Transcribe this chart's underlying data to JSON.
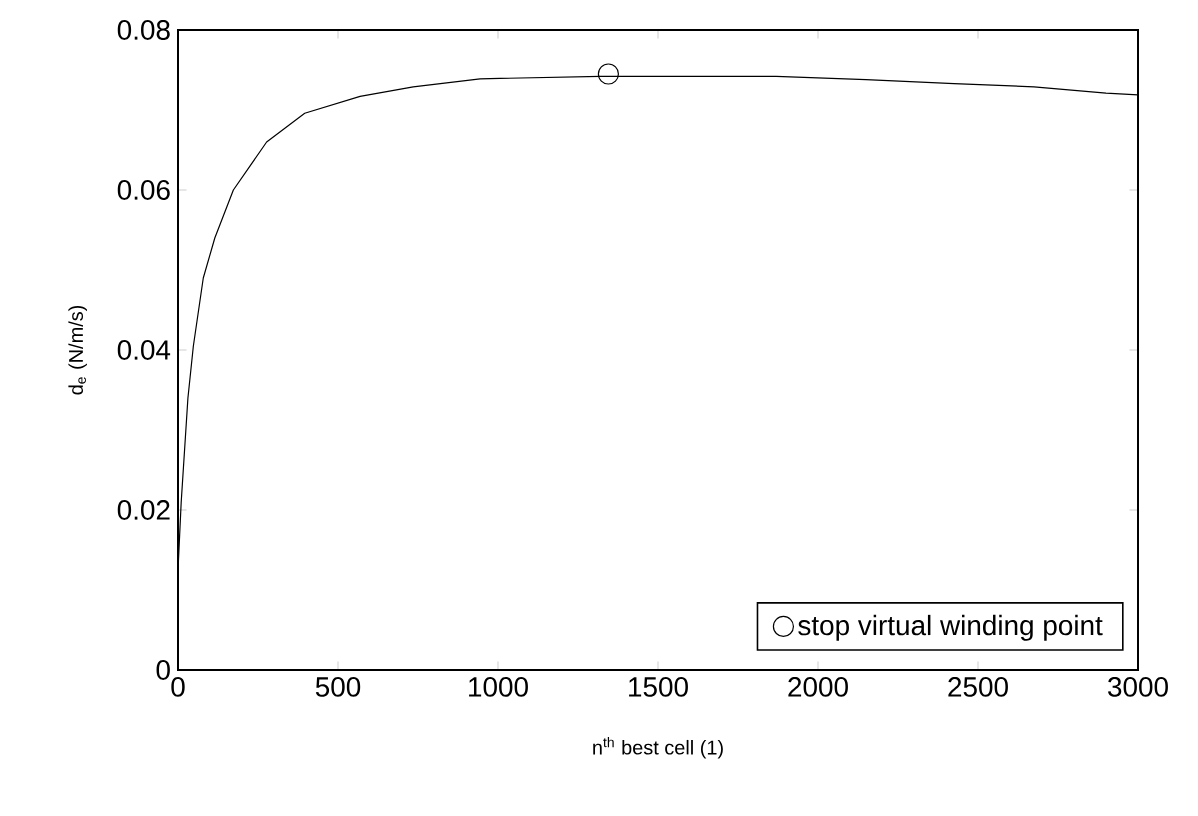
{
  "chart_data": {
    "type": "line",
    "xlabel": "n$^{th}$ best cell (1)",
    "ylabel": "d$_{e}$ (N/m/s)",
    "xlim": [
      0,
      3000
    ],
    "ylim": [
      0,
      0.08
    ],
    "xticks": [
      0,
      500,
      1000,
      1500,
      2000,
      2500,
      3000
    ],
    "yticks": [
      0,
      0.02,
      0.04,
      0.06,
      0.08
    ],
    "legend": "bottom right",
    "grid": false,
    "series": [
      {
        "color": "#000000",
        "marker": "none",
        "x": [
          0,
          10,
          31,
          48,
          79,
          115,
          173,
          277,
          396,
          569,
          735,
          944,
          1319,
          1869,
          2150,
          2425,
          2675,
          2900,
          3000
        ],
        "values": [
          0.0125,
          0.021,
          0.034,
          0.0405,
          0.049,
          0.054,
          0.06,
          0.066,
          0.0696,
          0.0717,
          0.0729,
          0.0739,
          0.0742,
          0.0742,
          0.0738,
          0.0733,
          0.0729,
          0.0721,
          0.0719
        ]
      },
      {
        "type": "scatter",
        "name": "stop virtual winding point",
        "color": "#000000",
        "marker": "circle",
        "x": [
          1345
        ],
        "values": [
          0.0745
        ]
      }
    ]
  }
}
